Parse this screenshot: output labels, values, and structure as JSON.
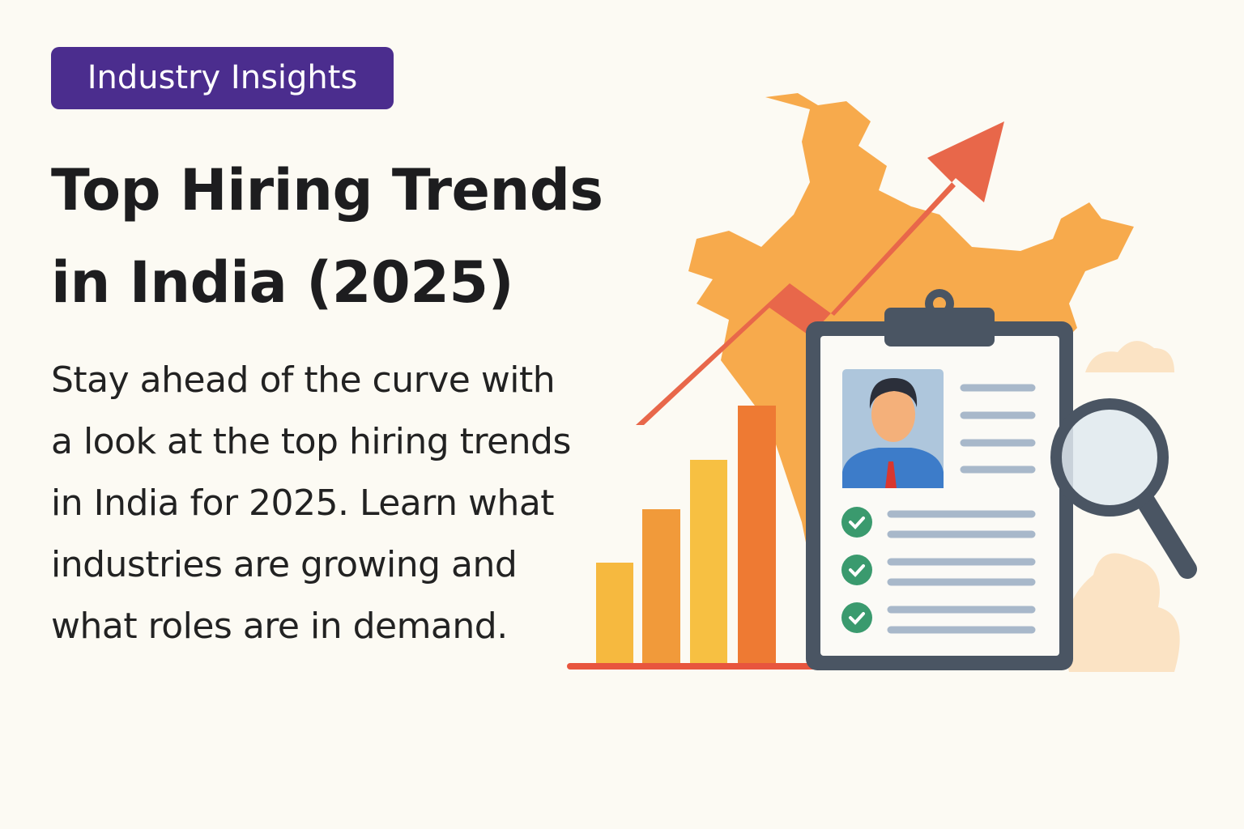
{
  "badge": "Industry Insights",
  "title": {
    "lines": [
      "Top Hiring Trends",
      "in India (2025)"
    ]
  },
  "description": {
    "lines": [
      "Stay ahead of the curve with",
      "a look at the top hiring trends",
      "in India for 2025. Learn what",
      "industries are growing and",
      "what roles are in demand."
    ]
  }
}
